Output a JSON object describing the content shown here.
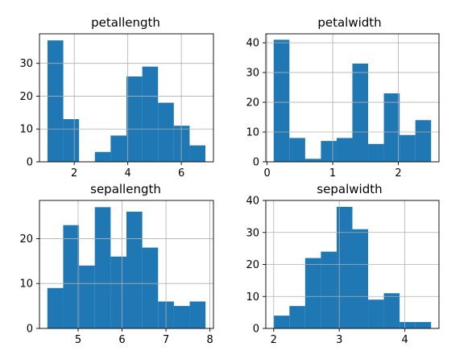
{
  "colors": {
    "bar": "#1f77b4",
    "grid": "#b0b0b0",
    "axis": "#000000",
    "background": "#ffffff"
  },
  "chart_data": [
    {
      "type": "bar",
      "title": "petallength",
      "grid": true,
      "xlim": [
        0.7,
        7.2
      ],
      "ylim": [
        0,
        39
      ],
      "xticks": [
        2,
        4,
        6
      ],
      "yticks": [
        0,
        10,
        20,
        30
      ],
      "bin_edges": [
        1.0,
        1.59,
        2.18,
        2.77,
        3.36,
        3.95,
        4.54,
        5.13,
        5.72,
        6.31,
        6.9
      ],
      "values": [
        37,
        13,
        0,
        3,
        8,
        26,
        29,
        18,
        11,
        5
      ]
    },
    {
      "type": "bar",
      "title": "petalwidth",
      "grid": true,
      "xlim": [
        -0.02,
        2.62
      ],
      "ylim": [
        0,
        43
      ],
      "xticks": [
        0,
        1,
        2
      ],
      "yticks": [
        0,
        10,
        20,
        30,
        40
      ],
      "bin_edges": [
        0.1,
        0.34,
        0.58,
        0.82,
        1.06,
        1.3,
        1.54,
        1.78,
        2.02,
        2.26,
        2.5
      ],
      "values": [
        41,
        8,
        1,
        7,
        8,
        33,
        6,
        23,
        9,
        14
      ]
    },
    {
      "type": "bar",
      "title": "sepallength",
      "grid": true,
      "xlim": [
        4.12,
        8.08
      ],
      "ylim": [
        0,
        28.5
      ],
      "xticks": [
        5,
        6,
        7,
        8
      ],
      "yticks": [
        0,
        10,
        20
      ],
      "bin_edges": [
        4.3,
        4.66,
        5.02,
        5.38,
        5.74,
        6.1,
        6.46,
        6.82,
        7.18,
        7.54,
        7.9
      ],
      "values": [
        9,
        23,
        14,
        27,
        16,
        26,
        18,
        6,
        5,
        6
      ]
    },
    {
      "type": "bar",
      "title": "sepalwidth",
      "grid": true,
      "xlim": [
        1.88,
        4.52
      ],
      "ylim": [
        0,
        40
      ],
      "xticks": [
        2,
        3,
        4
      ],
      "yticks": [
        0,
        10,
        20,
        30,
        40
      ],
      "bin_edges": [
        2.0,
        2.24,
        2.48,
        2.72,
        2.96,
        3.2,
        3.44,
        3.68,
        3.92,
        4.16,
        4.4
      ],
      "values": [
        4,
        7,
        22,
        24,
        38,
        31,
        9,
        11,
        2,
        2
      ]
    }
  ]
}
